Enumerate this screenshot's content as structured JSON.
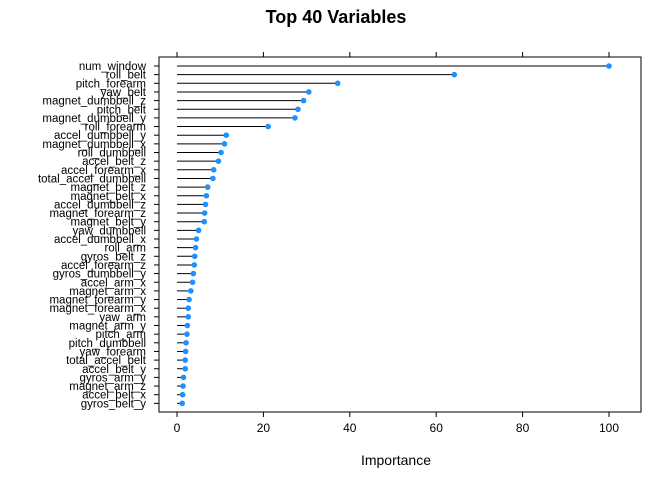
{
  "chart_data": {
    "type": "dotplot",
    "title": "Top 40 Variables",
    "xlabel": "Importance",
    "ylabel": "",
    "xlim": [
      -4,
      107
    ],
    "xticks": [
      0,
      20,
      40,
      60,
      80,
      100
    ],
    "grid": false,
    "marker_color": "#1e90ff",
    "categories": [
      "num_window",
      "roll_belt",
      "pitch_forearm",
      "yaw_belt",
      "magnet_dumbbell_z",
      "pitch_belt",
      "magnet_dumbbell_y",
      "roll_forearm",
      "accel_dumbbell_y",
      "magnet_dumbbell_x",
      "roll_dumbbell",
      "accel_belt_z",
      "accel_forearm_x",
      "total_accel_dumbbell",
      "magnet_belt_z",
      "magnet_belt_x",
      "accel_dumbbell_z",
      "magnet_forearm_z",
      "magnet_belt_y",
      "yaw_dumbbell",
      "accel_dumbbell_x",
      "roll_arm",
      "gyros_belt_z",
      "accel_forearm_z",
      "gyros_dumbbell_y",
      "accel_arm_x",
      "magnet_arm_x",
      "magnet_forearm_y",
      "magnet_forearm_x",
      "yaw_arm",
      "magnet_arm_y",
      "pitch_arm",
      "pitch_dumbbell",
      "yaw_forearm",
      "total_accel_belt",
      "accel_belt_y",
      "gyros_arm_y",
      "magnet_arm_z",
      "accel_belt_x",
      "gyros_belt_y"
    ],
    "values": [
      100,
      64.2,
      37.2,
      30.5,
      29.3,
      28.0,
      27.3,
      21.1,
      11.4,
      11.0,
      10.2,
      9.6,
      8.5,
      8.3,
      7.1,
      6.8,
      6.6,
      6.4,
      6.3,
      5.0,
      4.5,
      4.3,
      4.1,
      4.0,
      3.8,
      3.6,
      3.2,
      2.8,
      2.6,
      2.6,
      2.4,
      2.3,
      2.1,
      2.0,
      1.9,
      1.9,
      1.5,
      1.4,
      1.3,
      1.2
    ]
  }
}
